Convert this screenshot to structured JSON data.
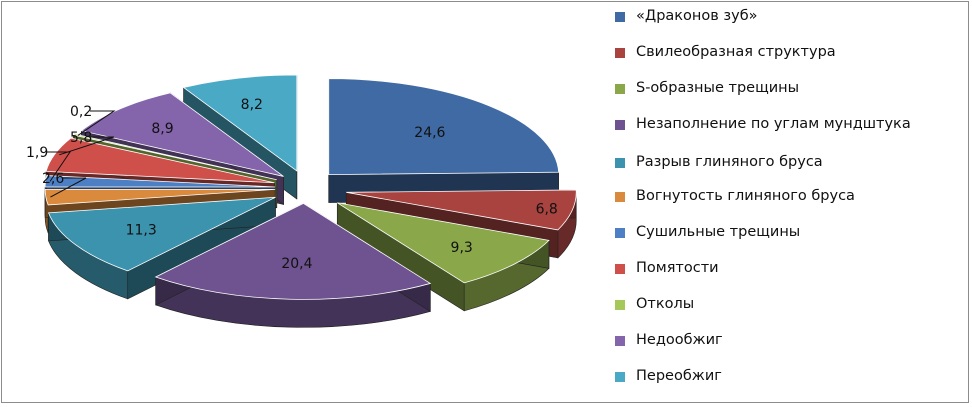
{
  "chart_data": {
    "type": "pie",
    "style": "3d-exploded",
    "legend_position": "right",
    "series": [
      {
        "label": "«Драконов зуб»",
        "value": 24.6,
        "value_label": "24,6",
        "color": "#3f6aa3"
      },
      {
        "label": "Свилеобразная структура",
        "value": 6.8,
        "value_label": "6,8",
        "color": "#a84340"
      },
      {
        "label": "S-образные трещины",
        "value": 9.3,
        "value_label": "9,3",
        "color": "#8aa84a"
      },
      {
        "label": "Незаполнение по углам мундштука",
        "value": 20.4,
        "value_label": "20,4",
        "color": "#6e5390"
      },
      {
        "label": "Разрыв глиняного бруса",
        "value": 11.3,
        "value_label": "11,3",
        "color": "#3b93ad"
      },
      {
        "label": "Вогнутость глиняного бруса",
        "value": 2.6,
        "value_label": "2,6",
        "color": "#d98a3c"
      },
      {
        "label": "Сушильные трещины",
        "value": 1.9,
        "value_label": "1,9",
        "color": "#4d7fc4"
      },
      {
        "label": "Помятости",
        "value": 5.8,
        "value_label": "5,8",
        "color": "#cf4f4b"
      },
      {
        "label": "Отколы",
        "value": 0.2,
        "value_label": "0,2",
        "color": "#a5c85a"
      },
      {
        "label": "Недообжиг",
        "value": 8.9,
        "value_label": "8,9",
        "color": "#8465ab"
      },
      {
        "label": "Переобжиг",
        "value": 8.2,
        "value_label": "8,2",
        "color": "#4aaac6"
      }
    ]
  }
}
